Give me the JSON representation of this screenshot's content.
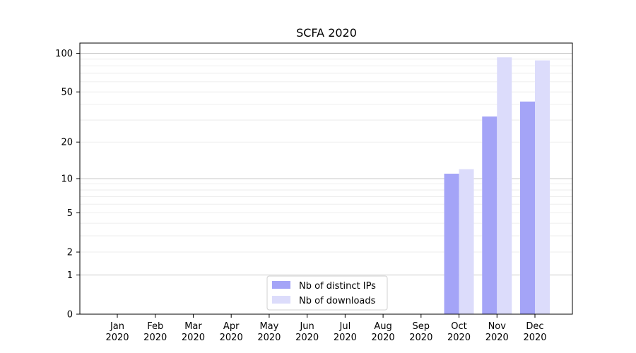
{
  "chart_data": {
    "type": "bar",
    "title": "SCFA 2020",
    "xlabel": "",
    "ylabel": "",
    "categories": [
      "Jan 2020",
      "Feb 2020",
      "Mar 2020",
      "Apr 2020",
      "May 2020",
      "Jun 2020",
      "Jul 2020",
      "Aug 2020",
      "Sep 2020",
      "Oct 2020",
      "Nov 2020",
      "Dec 2020"
    ],
    "category_lines": [
      [
        "Jan",
        "2020"
      ],
      [
        "Feb",
        "2020"
      ],
      [
        "Mar",
        "2020"
      ],
      [
        "Apr",
        "2020"
      ],
      [
        "May",
        "2020"
      ],
      [
        "Jun",
        "2020"
      ],
      [
        "Jul",
        "2020"
      ],
      [
        "Aug",
        "2020"
      ],
      [
        "Sep",
        "2020"
      ],
      [
        "Oct",
        "2020"
      ],
      [
        "Nov",
        "2020"
      ],
      [
        "Dec",
        "2020"
      ]
    ],
    "series": [
      {
        "name": "Nb of distinct IPs",
        "color": "#a4a4f7",
        "values": [
          0,
          0,
          0,
          0,
          0,
          0,
          0,
          0,
          0,
          11,
          32,
          42
        ]
      },
      {
        "name": "Nb of downloads",
        "color": "#dcdcfb",
        "values": [
          0,
          0,
          0,
          0,
          0,
          0,
          0,
          0,
          0,
          12,
          93,
          88
        ]
      }
    ],
    "y_scale": "symlog",
    "ylim": [
      0,
      120
    ],
    "yticks": [
      0,
      1,
      2,
      5,
      10,
      20,
      50,
      100
    ],
    "ytick_labels": [
      "0",
      "1",
      "2",
      "5",
      "10",
      "20",
      "50",
      "100"
    ],
    "grid": "horizontal",
    "legend_position": "lower-center"
  }
}
